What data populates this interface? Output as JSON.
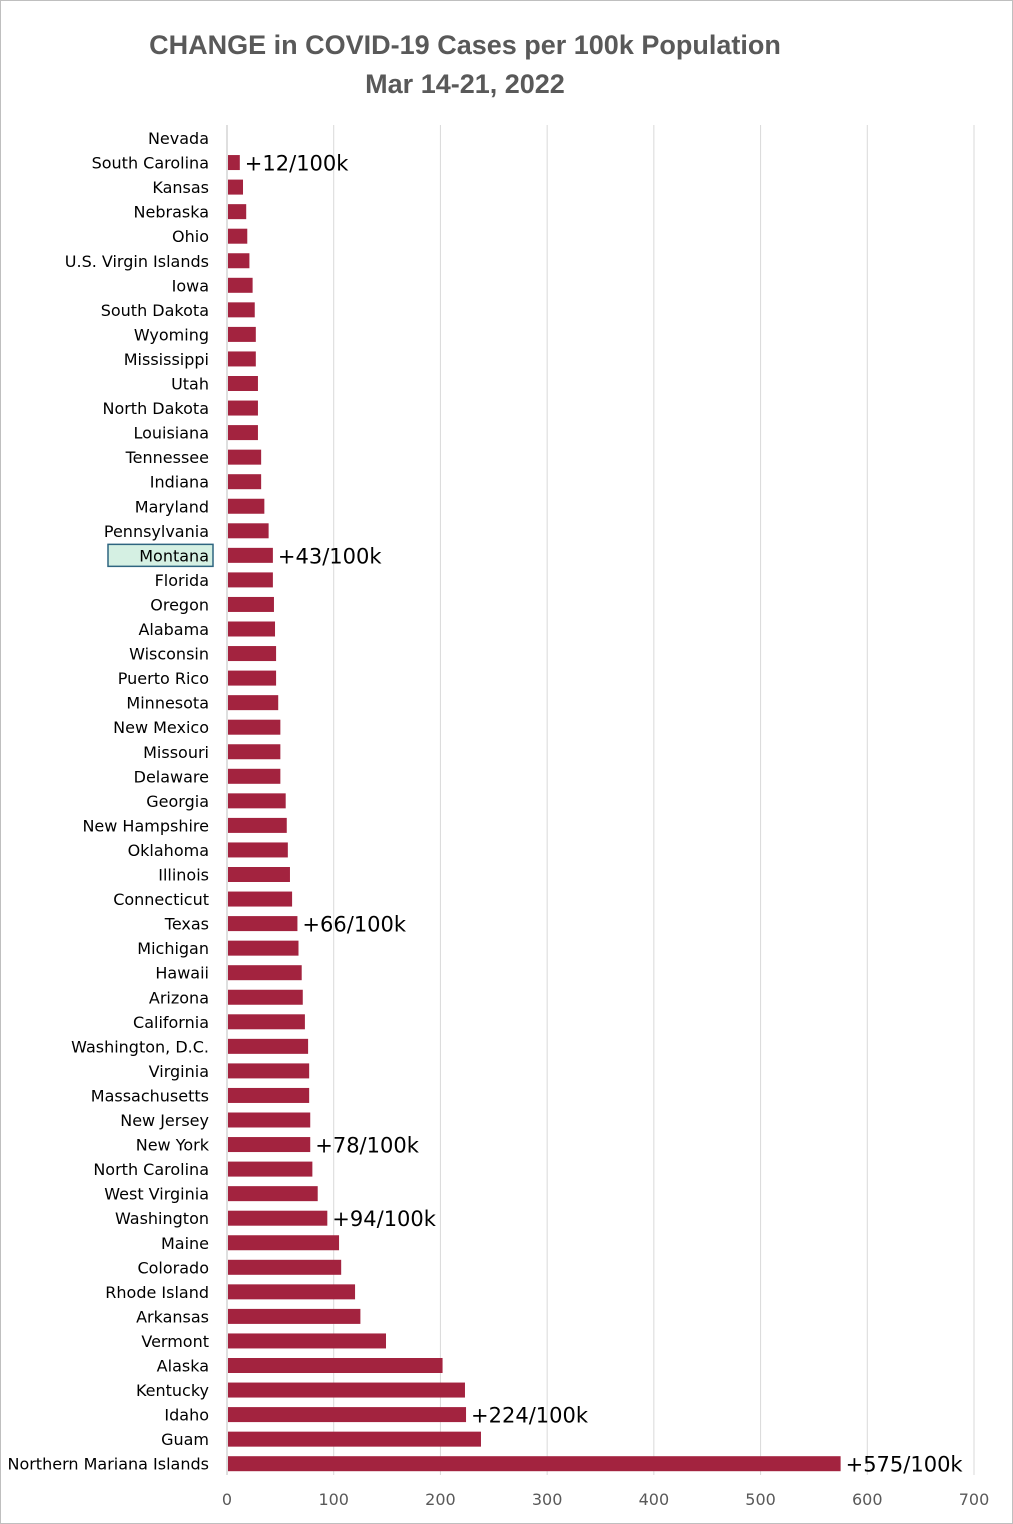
{
  "chart_data": {
    "type": "bar",
    "orientation": "horizontal",
    "title": "CHANGE in COVID-19 Cases per 100k Population",
    "subtitle": "Mar 14-21, 2022",
    "xlim": [
      0,
      700
    ],
    "xticks": [
      0,
      100,
      200,
      300,
      400,
      500,
      600,
      700
    ],
    "grid": "vertical",
    "bar_color": "#A3233F",
    "highlight_color": "#D5F0E3",
    "highlight_border": "#2E6580",
    "highlighted_category": "Montana",
    "categories": [
      "Nevada",
      "South Carolina",
      "Kansas",
      "Nebraska",
      "Ohio",
      "U.S. Virgin Islands",
      "Iowa",
      "South Dakota",
      "Wyoming",
      "Mississippi",
      "Utah",
      "North Dakota",
      "Louisiana",
      "Tennessee",
      "Indiana",
      "Maryland",
      "Pennsylvania",
      "Montana",
      "Florida",
      "Oregon",
      "Alabama",
      "Wisconsin",
      "Puerto Rico",
      "Minnesota",
      "New Mexico",
      "Missouri",
      "Delaware",
      "Georgia",
      "New Hampshire",
      "Oklahoma",
      "Illinois",
      "Connecticut",
      "Texas",
      "Michigan",
      "Hawaii",
      "Arizona",
      "California",
      "Washington, D.C.",
      "Virginia",
      "Massachusetts",
      "New Jersey",
      "New York",
      "North Carolina",
      "West Virginia",
      "Washington",
      "Maine",
      "Colorado",
      "Rhode Island",
      "Arkansas",
      "Vermont",
      "Alaska",
      "Kentucky",
      "Idaho",
      "Guam",
      "Northern Mariana Islands"
    ],
    "values": [
      0,
      12,
      15,
      18,
      19,
      21,
      24,
      26,
      27,
      27,
      29,
      29,
      29,
      32,
      32,
      35,
      39,
      43,
      43,
      44,
      45,
      46,
      46,
      48,
      50,
      50,
      50,
      55,
      56,
      57,
      59,
      61,
      66,
      67,
      70,
      71,
      73,
      76,
      77,
      77,
      78,
      78,
      80,
      85,
      94,
      105,
      107,
      120,
      125,
      149,
      202,
      223,
      224,
      238,
      575
    ],
    "annotations": [
      {
        "category": "South Carolina",
        "text": "+12/100k"
      },
      {
        "category": "Montana",
        "text": "+43/100k"
      },
      {
        "category": "Texas",
        "text": "+66/100k"
      },
      {
        "category": "New York",
        "text": "+78/100k"
      },
      {
        "category": "Washington",
        "text": "+94/100k"
      },
      {
        "category": "Idaho",
        "text": "+224/100k"
      },
      {
        "category": "Northern Mariana Islands",
        "text": "+575/100k"
      }
    ]
  }
}
